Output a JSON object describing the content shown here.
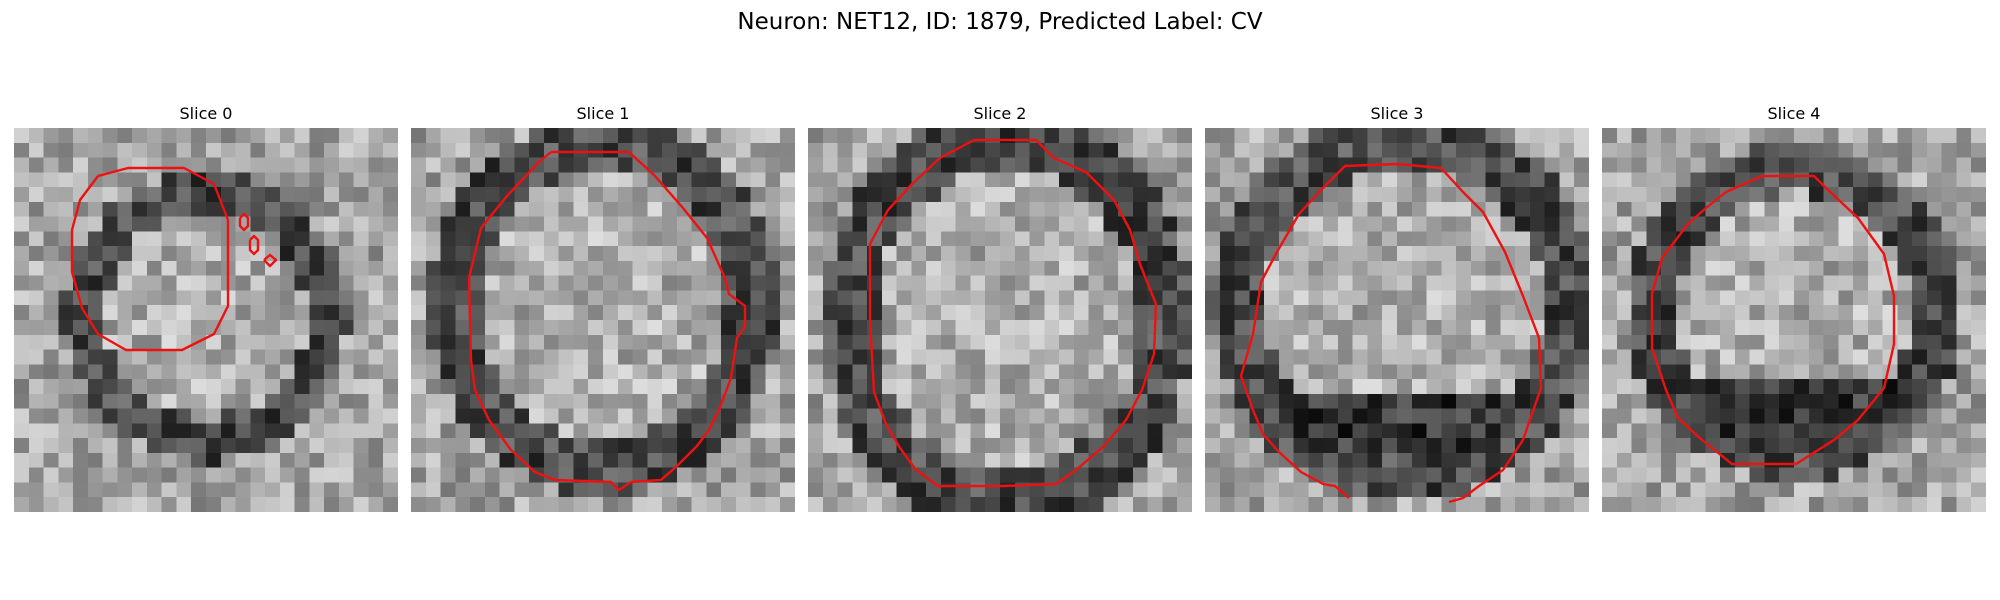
{
  "figure": {
    "title": "Neuron: NET12, ID: 1879, Predicted Label: CV",
    "contour_color": "#ee1111"
  },
  "panels": [
    {
      "title": "Slice 0",
      "blob": {
        "cx": 12.5,
        "cy": 12.2,
        "rx": 8,
        "ry": 8.2
      },
      "dark_band": null
    },
    {
      "title": "Slice 1",
      "blob": {
        "cx": 12.5,
        "cy": 11.5,
        "rx": 9.8,
        "ry": 10.8
      },
      "dark_band": null
    },
    {
      "title": "Slice 2",
      "blob": {
        "cx": 13,
        "cy": 12.5,
        "rx": 10.5,
        "ry": 12
      },
      "dark_band": null
    },
    {
      "title": "Slice 3",
      "blob": {
        "cx": 13,
        "cy": 11.5,
        "rx": 11,
        "ry": 11
      },
      "dark_band": {
        "cy": 19.5,
        "ry": 2.2
      }
    },
    {
      "title": "Slice 4",
      "blob": {
        "cx": 12.5,
        "cy": 12,
        "rx": 9.5,
        "ry": 9.5
      },
      "dark_band": {
        "cy": 18.5,
        "ry": 1.8
      }
    }
  ]
}
